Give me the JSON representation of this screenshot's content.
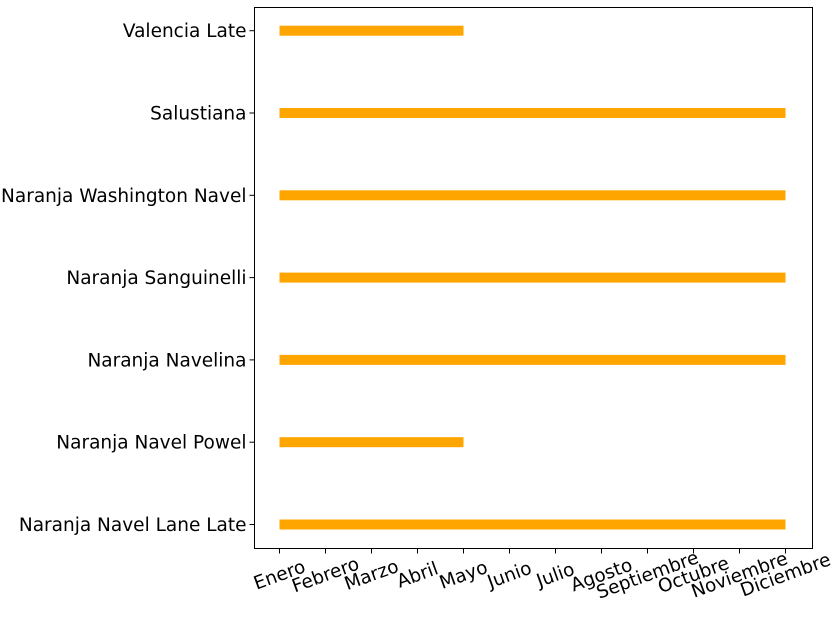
{
  "chart_data": {
    "type": "bar",
    "orientation": "horizontal",
    "title": "",
    "xlabel": "",
    "ylabel": "",
    "x_categories": [
      "Enero",
      "Febrero",
      "Marzo",
      "Abril",
      "Mayo",
      "Junio",
      "Julio",
      "Agosto",
      "Septiembre",
      "Octubre",
      "Noviembre",
      "Diciembre"
    ],
    "bar_color": "#ffa500",
    "grid": false,
    "legend": "none",
    "tasks": [
      {
        "label": "Naranja Navel Lane Late",
        "start": "Enero",
        "end": "Diciembre"
      },
      {
        "label": "Naranja Navel Powel",
        "start": "Enero",
        "end": "Mayo"
      },
      {
        "label": "Naranja Navelina",
        "start": "Enero",
        "end": "Diciembre"
      },
      {
        "label": "Naranja Sanguinelli",
        "start": "Enero",
        "end": "Diciembre"
      },
      {
        "label": "Naranja Washington Navel",
        "start": "Enero",
        "end": "Diciembre"
      },
      {
        "label": "Salustiana",
        "start": "Enero",
        "end": "Diciembre"
      },
      {
        "label": "Valencia Late",
        "start": "Enero",
        "end": "Mayo"
      }
    ]
  }
}
